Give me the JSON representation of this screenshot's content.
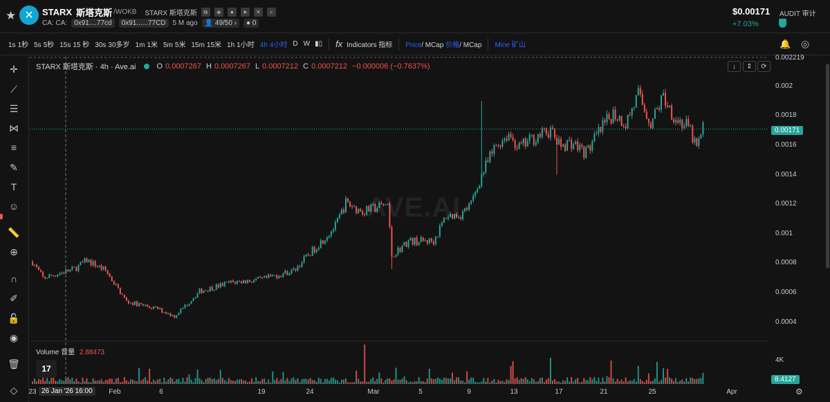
{
  "header": {
    "token_symbol": "STARX",
    "token_name": "斯塔克斯",
    "pair": "/WOKB",
    "full_name": "STARX 斯塔克斯",
    "ca1": "CA: CA:",
    "ca2": "0x91....77cd",
    "ca3": "0x91......77CD",
    "age": "5 M ago",
    "holders": "49/50",
    "badge": "0",
    "price": "$0.00171",
    "change": "+7.03%",
    "audit": "AUDIT 审计"
  },
  "toolbar": {
    "timeframes": [
      {
        "label": "1s",
        "zh": "1秒"
      },
      {
        "label": "5s",
        "zh": "5秒"
      },
      {
        "label": "15s",
        "zh": "15 秒"
      },
      {
        "label": "30s",
        "zh": "30多岁"
      },
      {
        "label": "1m",
        "zh": "1米"
      },
      {
        "label": "5m",
        "zh": "5米"
      },
      {
        "label": "15m",
        "zh": "15米"
      },
      {
        "label": "1h",
        "zh": "1小时"
      },
      {
        "label": "4h",
        "zh": "4小时"
      }
    ],
    "d": "D",
    "w": "W",
    "indicators": "Indicators 指标",
    "price": "Price",
    "mcap": "/ MCap",
    "price_zh": "价格",
    "mcap_zh": "/ MCap",
    "mine": "Mine",
    "mine_zh": "矿山"
  },
  "legend": {
    "title": "STARX 斯塔克斯 · 4h · Ave.ai",
    "o_key": "O",
    "o": "0.0007267",
    "h_key": "H",
    "h": "0.0007267",
    "l_key": "L",
    "l": "0.0007212",
    "c_key": "C",
    "c": "0.0007212",
    "delta": "−0.000006 (−0.7637%)"
  },
  "volume": {
    "label": "Volume 音量",
    "value": "2.88473",
    "axis_label": "4K",
    "last": "8.4127"
  },
  "watermark": "AVE.AI",
  "tv_logo": "17",
  "colors": {
    "up": "#26a69a",
    "down": "#ef5350",
    "accent": "#2962ff",
    "background": "#131313"
  },
  "chart_data": {
    "type": "candlestick",
    "title": "STARX 斯塔克斯 · 4h · Ave.ai",
    "ylim": [
      0.0003,
      0.0022
    ],
    "y_ticks": [
      "0.002",
      "0.0018",
      "0.0016",
      "0.0014",
      "0.0012",
      "0.001",
      "0.0008",
      "0.0006",
      "0.0004"
    ],
    "y_tick_values": [
      0.002,
      0.0018,
      0.0016,
      0.0014,
      0.0012,
      0.001,
      0.0008,
      0.0006,
      0.0004
    ],
    "top_partial_tick": "0.002219",
    "last_price_label": "0.00171",
    "last_price": 0.00171,
    "x_ticks": [
      "23",
      "Feb",
      "6",
      "19",
      "24",
      "Mar",
      "5",
      "9",
      "13",
      "17",
      "21",
      "25",
      "Apr"
    ],
    "crosshair_date": "26 Jan '26   16:00",
    "keypoints": [
      [
        0,
        0.00081
      ],
      [
        5,
        0.0007
      ],
      [
        20,
        0.00076
      ],
      [
        26,
        0.00082
      ],
      [
        35,
        0.00075
      ],
      [
        45,
        0.00054
      ],
      [
        60,
        0.00049
      ],
      [
        68,
        0.00044
      ],
      [
        80,
        0.00061
      ],
      [
        95,
        0.00067
      ],
      [
        110,
        0.00069
      ],
      [
        125,
        0.00075
      ],
      [
        135,
        0.0009
      ],
      [
        145,
        0.00105
      ],
      [
        150,
        0.00121
      ],
      [
        158,
        0.00115
      ],
      [
        165,
        0.00118
      ],
      [
        170,
        0.0012
      ],
      [
        172,
        0.00085
      ],
      [
        180,
        0.00095
      ],
      [
        192,
        0.00095
      ],
      [
        198,
        0.00112
      ],
      [
        205,
        0.00113
      ],
      [
        210,
        0.0012
      ],
      [
        215,
        0.0014
      ],
      [
        222,
        0.0016
      ],
      [
        228,
        0.00168
      ],
      [
        233,
        0.00158
      ],
      [
        240,
        0.00165
      ],
      [
        248,
        0.0017
      ],
      [
        252,
        0.0016
      ],
      [
        258,
        0.00162
      ],
      [
        265,
        0.00155
      ],
      [
        272,
        0.0017
      ],
      [
        278,
        0.00182
      ],
      [
        284,
        0.00175
      ],
      [
        290,
        0.00194
      ],
      [
        296,
        0.00175
      ],
      [
        302,
        0.00193
      ],
      [
        308,
        0.00178
      ],
      [
        314,
        0.00172
      ],
      [
        318,
        0.00158
      ],
      [
        321,
        0.00171
      ]
    ],
    "spikes": [
      [
        215,
        0.0019
      ],
      [
        172,
        0.00076
      ],
      [
        251,
        0.0014
      ]
    ]
  }
}
